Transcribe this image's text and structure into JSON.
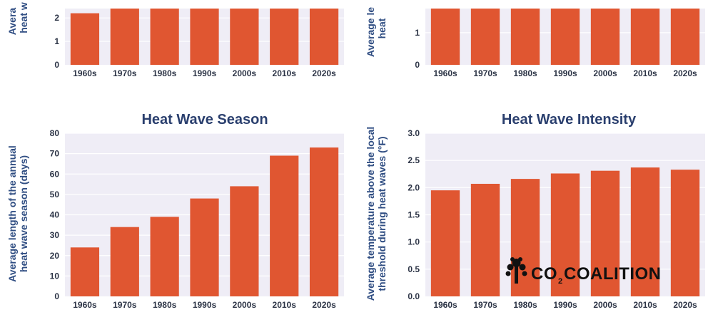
{
  "logo": {
    "text_prefix": "CO",
    "text_subscript": "2",
    "text_suffix": "COALITION",
    "icon": "tree-icon"
  },
  "colors": {
    "bar": "#e05631",
    "plot_background": "#efedf6",
    "title": "#2a3f6e",
    "axis_label": "#2f4d82"
  },
  "chart_data": [
    {
      "type": "bar",
      "title": "",
      "ylabel": "Avera heat w",
      "categories": [
        "1960s",
        "1970s",
        "1980s",
        "1990s",
        "2000s",
        "2010s",
        "2020s"
      ],
      "values": [
        2.2,
        2.6,
        2.6,
        2.6,
        2.6,
        2.6,
        2.6
      ],
      "yticks": [
        0,
        1,
        2
      ],
      "ylim": [
        0,
        2.4
      ],
      "grid": true
    },
    {
      "type": "bar",
      "title": "",
      "ylabel": "Average le heat",
      "categories": [
        "1960s",
        "1970s",
        "1980s",
        "1990s",
        "2000s",
        "2010s",
        "2020s"
      ],
      "values": [
        2.2,
        2.2,
        2.2,
        2.2,
        2.2,
        2.2,
        2.2
      ],
      "yticks": [
        0,
        1
      ],
      "ylim": [
        0,
        1.75
      ],
      "grid": true
    },
    {
      "type": "bar",
      "title": "Heat Wave Season",
      "ylabel": "Average length of the annual heat wave season (days)",
      "ylabel_lines": [
        "Average length of the annual",
        "heat wave season (days)"
      ],
      "categories": [
        "1960s",
        "1970s",
        "1980s",
        "1990s",
        "2000s",
        "2010s",
        "2020s"
      ],
      "values": [
        24,
        34,
        39,
        48,
        54,
        69,
        73
      ],
      "yticks": [
        0,
        10,
        20,
        30,
        40,
        50,
        60,
        70,
        80
      ],
      "ylim": [
        0,
        80
      ],
      "grid": true
    },
    {
      "type": "bar",
      "title": "Heat Wave Intensity",
      "ylabel": "Average temperature above the local threshold during heat waves (°F)",
      "ylabel_lines": [
        "Average temperature above the local",
        "threshold during heat waves (°F)"
      ],
      "categories": [
        "1960s",
        "1970s",
        "1980s",
        "1990s",
        "2000s",
        "2010s",
        "2020s"
      ],
      "values": [
        1.95,
        2.07,
        2.16,
        2.26,
        2.31,
        2.37,
        2.33
      ],
      "yticks": [
        "0.0",
        "0.5",
        "1.0",
        "1.5",
        "2.0",
        "2.5",
        "3.0"
      ],
      "ylim": [
        0,
        3.0
      ],
      "grid": true
    }
  ]
}
